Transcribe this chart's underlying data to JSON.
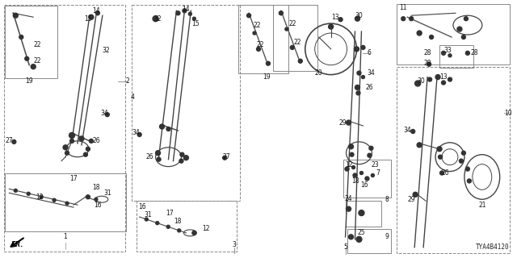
{
  "bg_color": "#ffffff",
  "diagram_id": "TYA4B4120",
  "part_color": "#444444",
  "box_color": "#888888",
  "label_color": "#111111",
  "label_fs": 5.5,
  "leader_color": "#555555"
}
